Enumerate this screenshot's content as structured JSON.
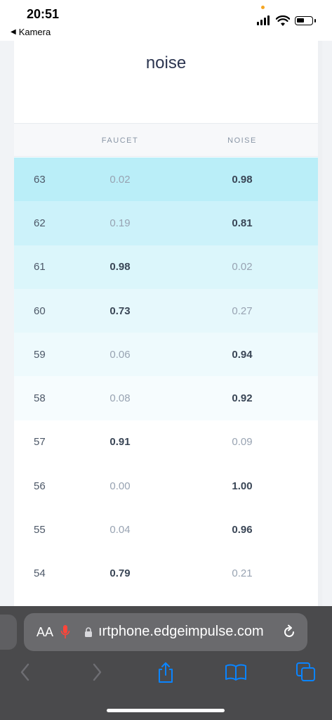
{
  "status_bar": {
    "time": "20:51",
    "back_label": "Kamera",
    "back_icon": "back-triangle-icon"
  },
  "card": {
    "title": "noise"
  },
  "table": {
    "columns": [
      "",
      "FAUCET",
      "NOISE"
    ],
    "rows": [
      {
        "idx": "63",
        "faucet": "0.02",
        "noise": "0.98",
        "win": "noise"
      },
      {
        "idx": "62",
        "faucet": "0.19",
        "noise": "0.81",
        "win": "noise"
      },
      {
        "idx": "61",
        "faucet": "0.98",
        "noise": "0.02",
        "win": "faucet"
      },
      {
        "idx": "60",
        "faucet": "0.73",
        "noise": "0.27",
        "win": "faucet"
      },
      {
        "idx": "59",
        "faucet": "0.06",
        "noise": "0.94",
        "win": "noise"
      },
      {
        "idx": "58",
        "faucet": "0.08",
        "noise": "0.92",
        "win": "noise"
      },
      {
        "idx": "57",
        "faucet": "0.91",
        "noise": "0.09",
        "win": "faucet"
      },
      {
        "idx": "56",
        "faucet": "0.00",
        "noise": "1.00",
        "win": "noise"
      },
      {
        "idx": "55",
        "faucet": "0.04",
        "noise": "0.96",
        "win": "noise"
      },
      {
        "idx": "54",
        "faucet": "0.79",
        "noise": "0.21",
        "win": "faucet"
      }
    ],
    "row_colors": [
      "#baeef8",
      "#ccf2fa",
      "#dbf6fb",
      "#e6f8fc",
      "#eefafd",
      "#f6fcfe",
      "#ffffff",
      "#ffffff",
      "#ffffff",
      "#ffffff"
    ]
  },
  "safari": {
    "text_size_label": "AA",
    "url": "ırtphone.edgeimpulse.com",
    "icons": [
      "mic-icon",
      "lock-icon",
      "reload-icon",
      "back-arrow-icon",
      "forward-arrow-icon",
      "share-icon",
      "bookmarks-icon",
      "tabs-icon"
    ]
  },
  "colors": {
    "accent": "#0a84ff",
    "title": "#2c3550",
    "mic": "#ff453a"
  }
}
